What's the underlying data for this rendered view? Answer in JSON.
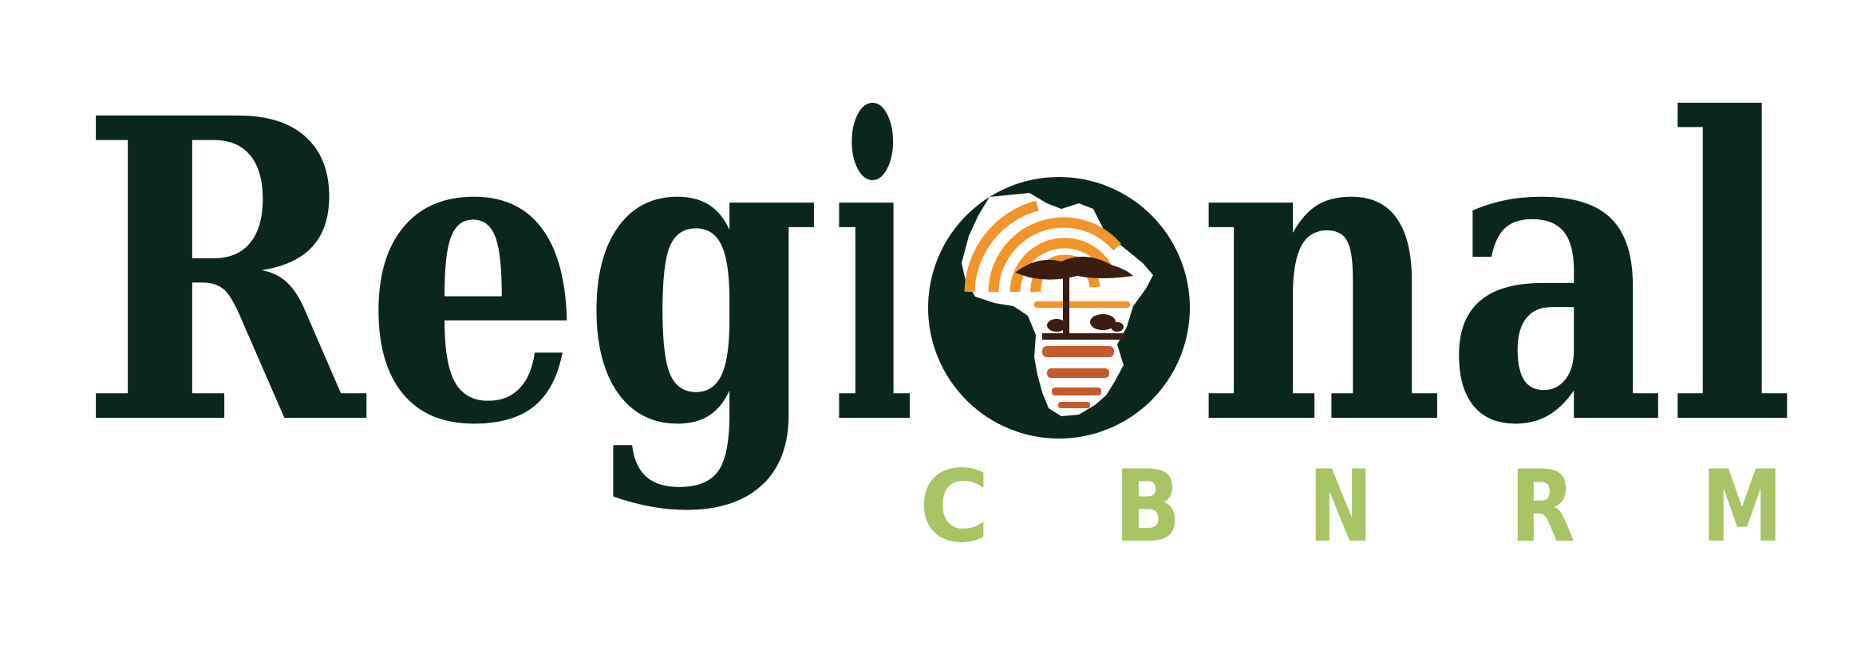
{
  "logo": {
    "word_part1": "Reg",
    "word_i": "i",
    "word_part2": "nal",
    "sub_letters": [
      "C",
      "B",
      "N",
      "R",
      "M"
    ],
    "colors": {
      "dark": "#0b271c",
      "green": "#a8c464",
      "orange": "#f2942a",
      "rust": "#c55a2e",
      "brown": "#3a1d10"
    }
  }
}
